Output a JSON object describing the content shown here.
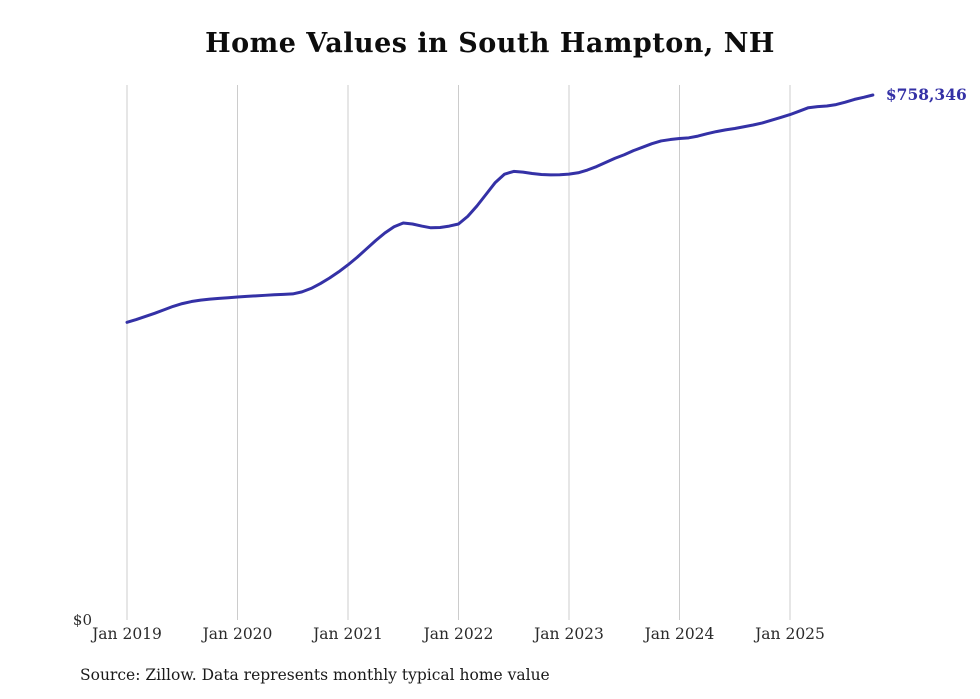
{
  "title": "Home Values in South Hampton, NH",
  "source_note": "Source: Zillow. Data represents monthly typical home value",
  "chart_data": {
    "type": "line",
    "title": "Home Values in South Hampton, NH",
    "series_name": "Monthly typical home value",
    "x": [
      "2019-01",
      "2019-02",
      "2019-03",
      "2019-04",
      "2019-05",
      "2019-06",
      "2019-07",
      "2019-08",
      "2019-09",
      "2019-10",
      "2019-11",
      "2019-12",
      "2020-01",
      "2020-02",
      "2020-03",
      "2020-04",
      "2020-05",
      "2020-06",
      "2020-07",
      "2020-08",
      "2020-09",
      "2020-10",
      "2020-11",
      "2020-12",
      "2021-01",
      "2021-02",
      "2021-03",
      "2021-04",
      "2021-05",
      "2021-06",
      "2021-07",
      "2021-08",
      "2021-09",
      "2021-10",
      "2021-11",
      "2021-12",
      "2022-01",
      "2022-02",
      "2022-03",
      "2022-04",
      "2022-05",
      "2022-06",
      "2022-07",
      "2022-08",
      "2022-09",
      "2022-10",
      "2022-11",
      "2022-12",
      "2023-01",
      "2023-02",
      "2023-03",
      "2023-04",
      "2023-05",
      "2023-06",
      "2023-07",
      "2023-08",
      "2023-09",
      "2023-10",
      "2023-11",
      "2023-12",
      "2024-01",
      "2024-02",
      "2024-03",
      "2024-04",
      "2024-05",
      "2024-06",
      "2024-07",
      "2024-08",
      "2024-09",
      "2024-10",
      "2024-11",
      "2024-12",
      "2025-01",
      "2025-02",
      "2025-03",
      "2025-04",
      "2025-05",
      "2025-06",
      "2025-07",
      "2025-08",
      "2025-09",
      "2025-10"
    ],
    "values": [
      430000,
      434000,
      438500,
      443000,
      448000,
      453000,
      457000,
      460000,
      462000,
      463500,
      464500,
      465500,
      466500,
      467500,
      468200,
      469000,
      469800,
      470300,
      471000,
      474000,
      479000,
      486000,
      494000,
      503000,
      513000,
      524000,
      536000,
      548000,
      559000,
      568000,
      573500,
      572000,
      569000,
      566500,
      567000,
      569000,
      572000,
      583000,
      598000,
      615000,
      632000,
      644000,
      648000,
      647000,
      645000,
      643500,
      643000,
      643200,
      644000,
      646000,
      650000,
      655000,
      661000,
      667000,
      672000,
      678000,
      683000,
      688000,
      692000,
      694000,
      695500,
      696500,
      699000,
      702500,
      705500,
      708000,
      710000,
      712500,
      715000,
      718000,
      722000,
      726000,
      730000,
      735000,
      740000,
      741500,
      742500,
      744500,
      748000,
      752000,
      755000,
      758346
    ],
    "x_ticks": [
      "Jan 2019",
      "Jan 2020",
      "Jan 2021",
      "Jan 2022",
      "Jan 2023",
      "Jan 2024",
      "Jan 2025"
    ],
    "y_origin_label": "$0",
    "end_label": "$758,346",
    "ylim": [
      0,
      758346
    ],
    "xlabel": "",
    "ylabel": "",
    "grid": "vertical",
    "legend": "none",
    "line_color": "#3431a6",
    "grid_color": "#cccccc",
    "tick_color": "#2b2b2b",
    "end_label_color": "#3431a6"
  }
}
